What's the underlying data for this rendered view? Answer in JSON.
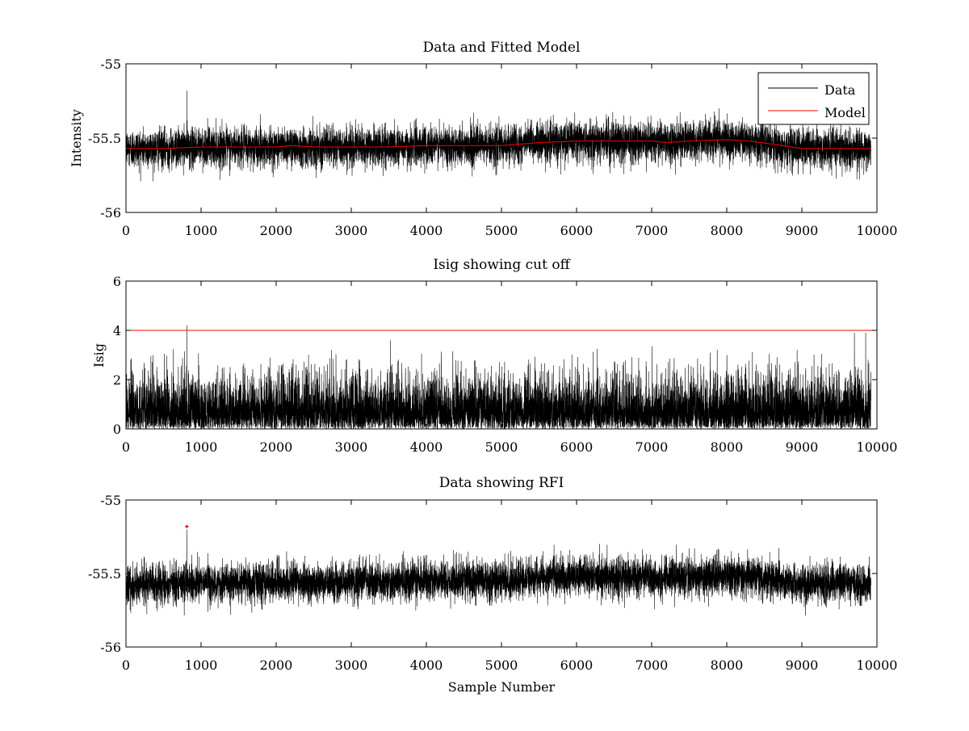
{
  "chart_data": [
    {
      "type": "line",
      "title": "Data and Fitted Model",
      "xlabel": "",
      "ylabel": "Intensity",
      "xlim": [
        0,
        10000
      ],
      "ylim": [
        -56,
        -55
      ],
      "xticks": [
        "0",
        "1000",
        "2000",
        "3000",
        "4000",
        "5000",
        "6000",
        "7000",
        "8000",
        "9000",
        "10000"
      ],
      "yticks": [
        "-56",
        "-55.5",
        "-55"
      ],
      "legend": {
        "placement": "top-right",
        "entries": [
          "Data",
          "Model"
        ]
      },
      "series": [
        {
          "name": "Data",
          "color": "#000000",
          "kind": "noise",
          "n_points": 9920,
          "x_range": [
            1,
            9920
          ],
          "baseline": "Model",
          "noise_sd": 0.065,
          "spikes": [
            {
              "x": 810,
              "y": -55.18
            }
          ]
        },
        {
          "name": "Model",
          "color": "#ff0000",
          "x": [
            0,
            500,
            1000,
            1500,
            2000,
            2200,
            2500,
            3000,
            3500,
            4000,
            4500,
            5000,
            5500,
            6000,
            6500,
            7000,
            7200,
            7500,
            8000,
            8300,
            8600,
            9000,
            9500,
            9920
          ],
          "y": [
            -55.57,
            -55.57,
            -55.56,
            -55.56,
            -55.56,
            -55.55,
            -55.56,
            -55.56,
            -55.56,
            -55.55,
            -55.55,
            -55.55,
            -55.53,
            -55.52,
            -55.52,
            -55.52,
            -55.53,
            -55.52,
            -55.51,
            -55.52,
            -55.54,
            -55.57,
            -55.57,
            -55.57
          ]
        }
      ]
    },
    {
      "type": "line",
      "title": "Isig showing cut off",
      "xlabel": "",
      "ylabel": "Isig",
      "xlim": [
        0,
        10000
      ],
      "ylim": [
        0,
        6
      ],
      "xticks": [
        "0",
        "1000",
        "2000",
        "3000",
        "4000",
        "5000",
        "6000",
        "7000",
        "8000",
        "9000",
        "10000"
      ],
      "yticks": [
        "0",
        "2",
        "4",
        "6"
      ],
      "series": [
        {
          "color": "#000000",
          "kind": "abs-noise",
          "n_points": 9920,
          "x_range": [
            1,
            9920
          ],
          "noise_sd": 1.0,
          "spikes": [
            {
              "x": 810,
              "y": 4.2
            },
            {
              "x": 3520,
              "y": 3.6
            },
            {
              "x": 9700,
              "y": 3.9
            },
            {
              "x": 9850,
              "y": 3.9
            }
          ]
        },
        {
          "name": "cut off",
          "color": "#ff0000",
          "x": [
            0,
            10000
          ],
          "y": [
            4,
            4
          ]
        }
      ]
    },
    {
      "type": "line",
      "title": "Data showing RFI",
      "xlabel": "Sample Number",
      "ylabel": "",
      "xlim": [
        0,
        10000
      ],
      "ylim": [
        -56,
        -55
      ],
      "xticks": [
        "0",
        "1000",
        "2000",
        "3000",
        "4000",
        "5000",
        "6000",
        "7000",
        "8000",
        "9000",
        "10000"
      ],
      "yticks": [
        "-56",
        "-55.5",
        "-55"
      ],
      "series": [
        {
          "color": "#000000",
          "kind": "noise",
          "n_points": 9920,
          "x_range": [
            1,
            9920
          ],
          "baseline": [
            [
              0,
              -55.57
            ],
            [
              500,
              -55.57
            ],
            [
              1000,
              -55.56
            ],
            [
              1500,
              -55.56
            ],
            [
              2000,
              -55.56
            ],
            [
              2200,
              -55.55
            ],
            [
              2500,
              -55.56
            ],
            [
              3000,
              -55.56
            ],
            [
              3500,
              -55.56
            ],
            [
              4000,
              -55.55
            ],
            [
              4500,
              -55.55
            ],
            [
              5000,
              -55.55
            ],
            [
              5500,
              -55.53
            ],
            [
              6000,
              -55.52
            ],
            [
              6500,
              -55.52
            ],
            [
              7000,
              -55.52
            ],
            [
              7200,
              -55.53
            ],
            [
              7500,
              -55.52
            ],
            [
              8000,
              -55.51
            ],
            [
              8300,
              -55.52
            ],
            [
              8600,
              -55.54
            ],
            [
              9000,
              -55.57
            ],
            [
              9500,
              -55.57
            ],
            [
              9920,
              -55.57
            ]
          ],
          "noise_sd": 0.065,
          "spikes": [
            {
              "x": 810,
              "y": -55.2
            }
          ]
        },
        {
          "name": "RFI",
          "color": "#ff0000",
          "kind": "points",
          "x": [
            810
          ],
          "y": [
            -55.18
          ]
        }
      ]
    }
  ]
}
